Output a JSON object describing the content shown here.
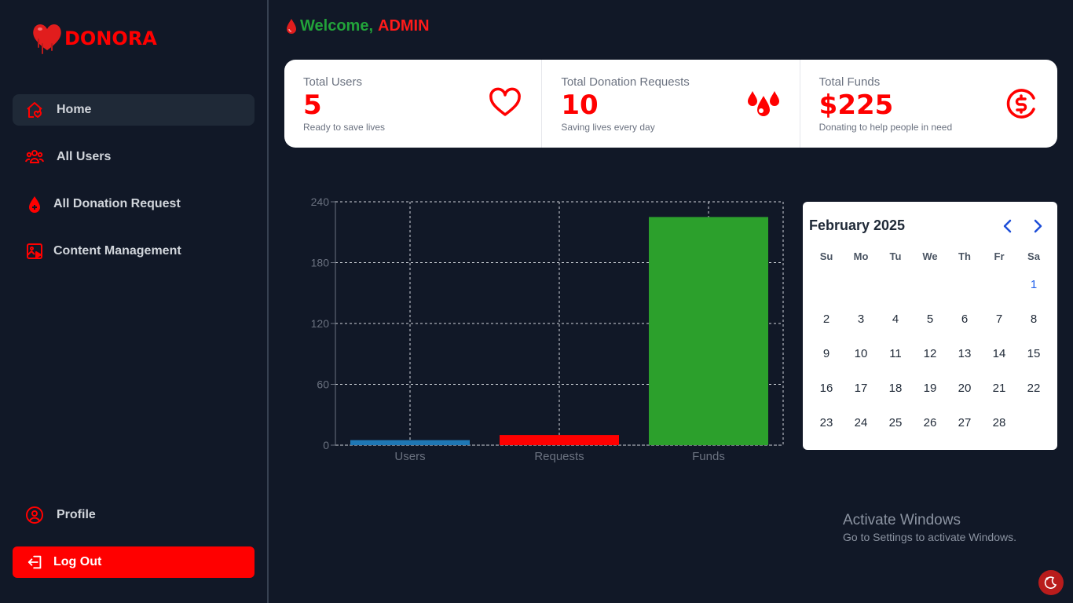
{
  "app": {
    "name": "DONORA",
    "brand_color": "#ff0000"
  },
  "header": {
    "welcome_prefix": "Welcome,",
    "user_name": "ADMIN"
  },
  "sidebar": {
    "items": [
      {
        "label": "Home",
        "icon": "home-icon",
        "active": true
      },
      {
        "label": "All Users",
        "icon": "users-icon"
      },
      {
        "label": "All Donation Request",
        "icon": "blood-drop-icon"
      },
      {
        "label": "Content Management",
        "icon": "content-icon"
      }
    ],
    "profile_label": "Profile",
    "logout_label": "Log Out"
  },
  "stats": [
    {
      "title": "Total Users",
      "value": "5",
      "desc": "Ready to save lives",
      "icon": "heart-icon"
    },
    {
      "title": "Total Donation Requests",
      "value": "10",
      "desc": "Saving lives every day",
      "icon": "blood-drops-icon"
    },
    {
      "title": "Total Funds",
      "value": "$225",
      "desc": "Donating to help people in need",
      "icon": "dollar-circle-icon"
    }
  ],
  "chart_data": {
    "type": "bar",
    "categories": [
      "Users",
      "Requests",
      "Funds"
    ],
    "values": [
      5,
      10,
      225
    ],
    "colors": [
      "#1f77b4",
      "#ff0000",
      "#2ca02c"
    ],
    "ylim": [
      0,
      240
    ],
    "yticks": [
      0,
      60,
      120,
      180,
      240
    ],
    "grid": true
  },
  "calendar": {
    "title": "February 2025",
    "weekdays": [
      "Su",
      "Mo",
      "Tu",
      "We",
      "Th",
      "Fr",
      "Sa"
    ],
    "leading_blanks": 6,
    "days": [
      "1",
      "2",
      "3",
      "4",
      "5",
      "6",
      "7",
      "8",
      "9",
      "10",
      "11",
      "12",
      "13",
      "14",
      "15",
      "16",
      "17",
      "18",
      "19",
      "20",
      "21",
      "22",
      "23",
      "24",
      "25",
      "26",
      "27",
      "28"
    ]
  },
  "watermark": {
    "title": "Activate Windows",
    "subtitle": "Go to Settings to activate Windows."
  }
}
